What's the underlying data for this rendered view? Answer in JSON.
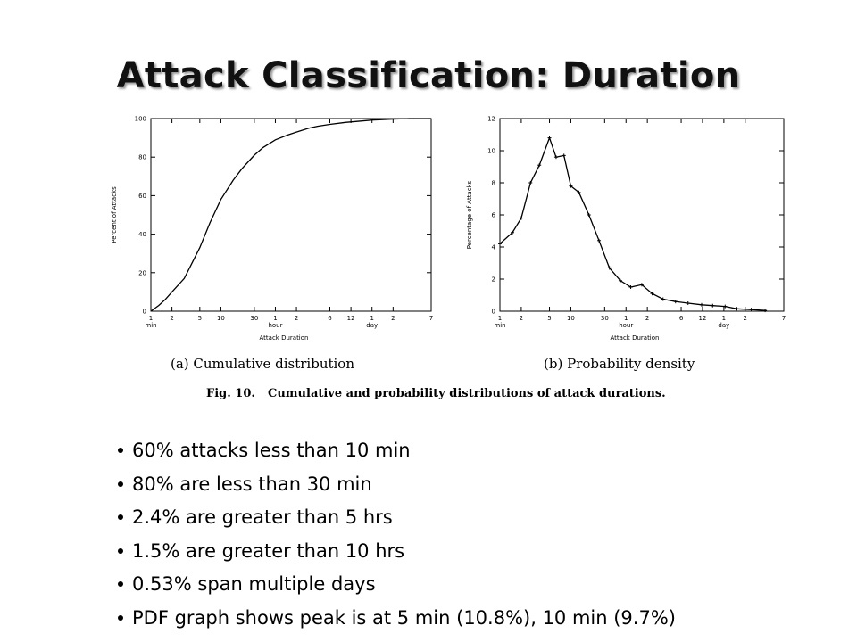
{
  "slide": {
    "title": "Attack Classification: Duration",
    "figure_caption_label": "Fig. 10.",
    "figure_caption_text": "Cumulative and probability distributions of attack durations.",
    "bullets": [
      "60% attacks less than 10 min",
      "80% are less than 30 min",
      "2.4% are greater than 5 hrs",
      "1.5% are greater than 10 hrs",
      "0.53% span multiple days",
      "PDF graph shows peak is at 5 min (10.8%), 10 min (9.7%)"
    ]
  },
  "chart_data": [
    {
      "type": "line",
      "subtitle": "(a) Cumulative distribution",
      "xlabel": "Attack Duration",
      "ylabel": "Percent of Attacks",
      "xscale": "log",
      "x_ticks": [
        "1",
        "2",
        "5",
        "10",
        "30",
        "1",
        "2",
        "6",
        "12",
        "1",
        "2",
        "7"
      ],
      "x_tick_sub": [
        "min",
        "",
        "",
        "",
        "",
        "hour",
        "",
        "",
        "",
        "day",
        "",
        ""
      ],
      "x_tick_minutes": [
        1,
        2,
        5,
        10,
        30,
        60,
        120,
        360,
        720,
        1440,
        2880,
        10080
      ],
      "y_ticks": [
        "0",
        "20",
        "40",
        "60",
        "80",
        "100"
      ],
      "ylim": [
        0,
        100
      ],
      "x": [
        1,
        1.3,
        1.6,
        2,
        3,
        4,
        5,
        7,
        10,
        15,
        20,
        30,
        40,
        60,
        90,
        120,
        180,
        240,
        360,
        600,
        1000,
        1440,
        2880,
        5000,
        10080
      ],
      "y": [
        0,
        3,
        6,
        10,
        17,
        26,
        33,
        46,
        58,
        68,
        74,
        81,
        85,
        89,
        91.5,
        93,
        95,
        96,
        97,
        98,
        98.7,
        99.2,
        99.7,
        100,
        100
      ]
    },
    {
      "type": "line",
      "subtitle": "(b) Probability density",
      "xlabel": "Attack Duration",
      "ylabel": "Percentage of Attacks",
      "xscale": "log",
      "x_ticks": [
        "1",
        "2",
        "5",
        "10",
        "30",
        "1",
        "2",
        "6",
        "12",
        "1",
        "2",
        "7"
      ],
      "x_tick_sub": [
        "min",
        "",
        "",
        "",
        "",
        "hour",
        "",
        "",
        "",
        "day",
        "",
        ""
      ],
      "x_tick_minutes": [
        1,
        2,
        5,
        10,
        30,
        60,
        120,
        360,
        720,
        1440,
        2880,
        10080
      ],
      "y_ticks": [
        "0",
        "2",
        "4",
        "6",
        "8",
        "10",
        "12"
      ],
      "ylim": [
        0,
        12
      ],
      "x": [
        1,
        1.5,
        2,
        2.7,
        3.6,
        5,
        6.2,
        8,
        10,
        13,
        18,
        25,
        35,
        50,
        70,
        100,
        140,
        200,
        300,
        450,
        700,
        1000,
        1500,
        2200,
        3500,
        5500
      ],
      "y": [
        4.2,
        4.9,
        5.8,
        8.0,
        9.1,
        10.8,
        9.6,
        9.7,
        7.8,
        7.4,
        6.0,
        4.4,
        2.7,
        1.9,
        1.5,
        1.65,
        1.1,
        0.75,
        0.6,
        0.5,
        0.4,
        0.35,
        0.3,
        0.15,
        0.1,
        0.05
      ]
    }
  ]
}
